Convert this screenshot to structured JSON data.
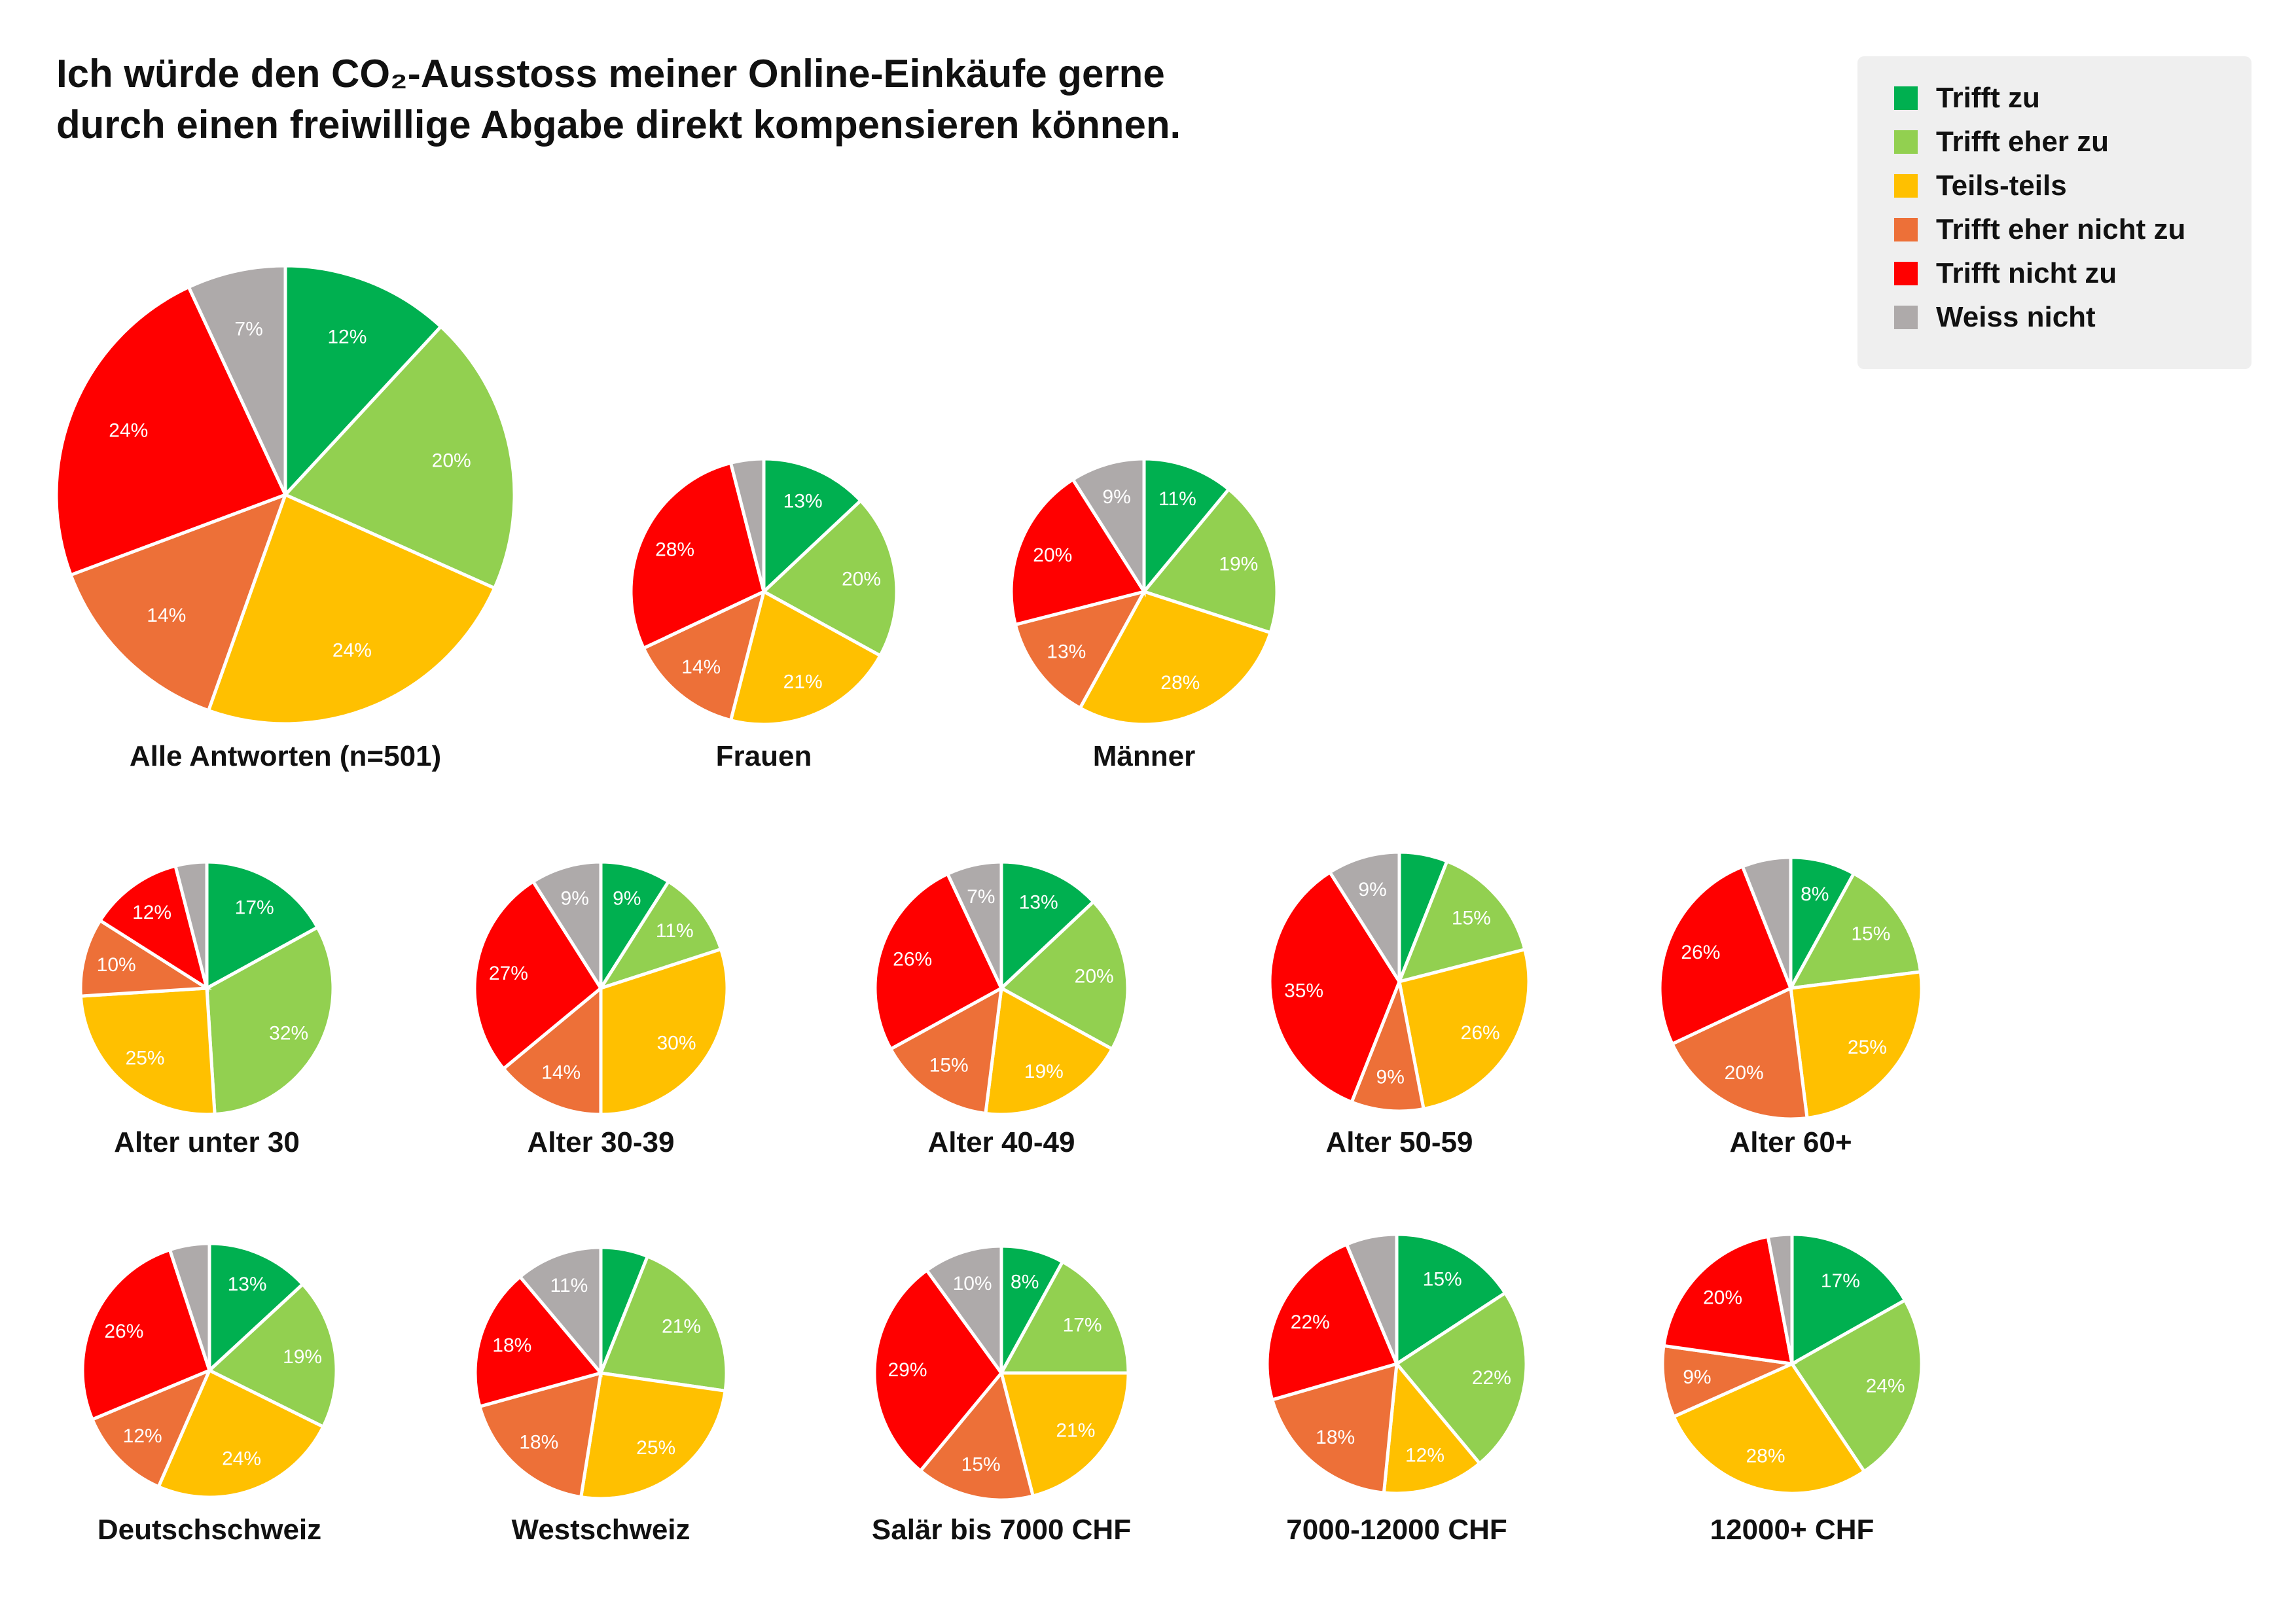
{
  "title": {
    "line1": "Ich würde den CO₂-Ausstoss meiner Online-Einkäufe gerne",
    "line2": "durch einen freiwillige Abgabe direkt kompensieren können."
  },
  "legend": {
    "items": [
      {
        "label": "Trifft zu",
        "color": "#00b050"
      },
      {
        "label": "Trifft eher zu",
        "color": "#92d050"
      },
      {
        "label": "Teils-teils",
        "color": "#ffc000"
      },
      {
        "label": "Trifft eher nicht zu",
        "color": "#ed7038"
      },
      {
        "label": "Trifft nicht zu",
        "color": "#ff0000"
      },
      {
        "label": "Weiss nicht",
        "color": "#aeaaaa"
      }
    ]
  },
  "chart_data": {
    "type": "pie",
    "categories": [
      "Trifft zu",
      "Trifft eher zu",
      "Teils-teils",
      "Trifft eher nicht zu",
      "Trifft nicht zu",
      "Weiss nicht"
    ],
    "colors": [
      "#00b050",
      "#92d050",
      "#ffc000",
      "#ed7038",
      "#ff0000",
      "#aeaaaa"
    ],
    "unit": "%",
    "pies": [
      {
        "name": "Alle Antworten (n=501)",
        "values": [
          12,
          20,
          24,
          14,
          24,
          7
        ],
        "labels": [
          "12%",
          "20%",
          "24%",
          "14%",
          "24%",
          "7%"
        ]
      },
      {
        "name": "Frauen",
        "values": [
          13,
          20,
          21,
          14,
          28,
          4
        ],
        "labels": [
          "13%",
          "20%",
          "21%",
          "14%",
          "28%",
          ""
        ]
      },
      {
        "name": "Männer",
        "values": [
          11,
          19,
          28,
          13,
          20,
          9
        ],
        "labels": [
          "11%",
          "19%",
          "28%",
          "13%",
          "20%",
          "9%"
        ]
      },
      {
        "name": "Alter unter 30",
        "values": [
          17,
          32,
          25,
          10,
          12,
          4
        ],
        "labels": [
          "17%",
          "32%",
          "25%",
          "10%",
          "12%",
          ""
        ]
      },
      {
        "name": "Alter 30-39",
        "values": [
          9,
          11,
          30,
          14,
          27,
          9
        ],
        "labels": [
          "9%",
          "11%",
          "30%",
          "14%",
          "27%",
          "9%"
        ]
      },
      {
        "name": "Alter 40-49",
        "values": [
          13,
          20,
          19,
          15,
          26,
          7
        ],
        "labels": [
          "13%",
          "20%",
          "19%",
          "15%",
          "26%",
          "7%"
        ]
      },
      {
        "name": "Alter 50-59",
        "values": [
          6,
          15,
          26,
          9,
          35,
          9
        ],
        "labels": [
          "",
          "15%",
          "26%",
          "9%",
          "35%",
          "9%"
        ]
      },
      {
        "name": "Alter 60+",
        "values": [
          8,
          15,
          25,
          20,
          26,
          6
        ],
        "labels": [
          "8%",
          "15%",
          "25%",
          "20%",
          "26%",
          ""
        ]
      },
      {
        "name": "Deutschschweiz",
        "values": [
          13,
          19,
          24,
          12,
          26,
          5
        ],
        "labels": [
          "13%",
          "19%",
          "24%",
          "12%",
          "26%",
          ""
        ]
      },
      {
        "name": "Westschweiz",
        "values": [
          6,
          21,
          25,
          18,
          18,
          11
        ],
        "labels": [
          "",
          "21%",
          "25%",
          "18%",
          "18%",
          "11%"
        ]
      },
      {
        "name": "Salär bis 7000 CHF",
        "values": [
          8,
          17,
          21,
          15,
          29,
          10
        ],
        "labels": [
          "8%",
          "17%",
          "21%",
          "15%",
          "29%",
          "10%"
        ]
      },
      {
        "name": "7000-12000 CHF",
        "values": [
          15,
          22,
          12,
          18,
          22,
          6
        ],
        "labels": [
          "15%",
          "22%",
          "12%",
          "18%",
          "22%",
          ""
        ]
      },
      {
        "name": "12000+ CHF",
        "values": [
          17,
          24,
          28,
          9,
          20,
          3
        ],
        "labels": [
          "17%",
          "24%",
          "28%",
          "9%",
          "20%",
          ""
        ]
      }
    ]
  }
}
